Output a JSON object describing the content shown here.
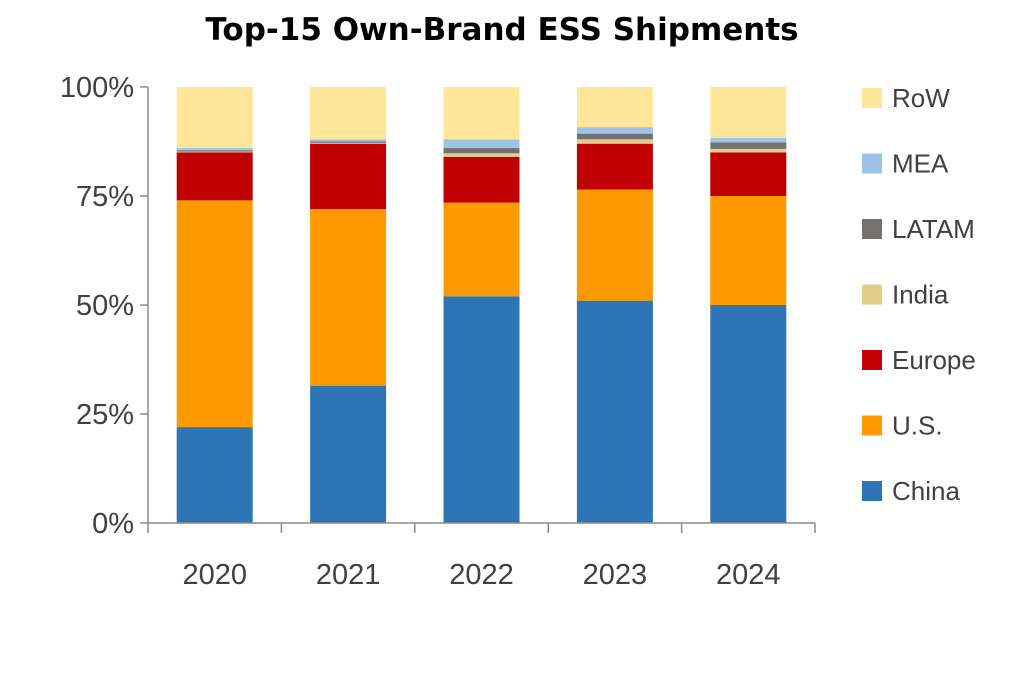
{
  "chart_data": {
    "type": "bar",
    "stacked": true,
    "percent": true,
    "title": "Top-15 Own-Brand ESS Shipments",
    "xlabel": "",
    "ylabel": "",
    "ylim": [
      0,
      100
    ],
    "yticks": [
      "0%",
      "25%",
      "50%",
      "75%",
      "100%"
    ],
    "grid": false,
    "legend": "right",
    "categories": [
      "2020",
      "2021",
      "2022",
      "2023",
      "2024"
    ],
    "series": [
      {
        "name": "China",
        "color": "#2E75B6",
        "values": [
          22,
          31.5,
          52,
          51,
          50
        ]
      },
      {
        "name": "U.S.",
        "color": "#FF9900",
        "values": [
          52,
          40.5,
          21.5,
          25.5,
          25
        ]
      },
      {
        "name": "Europe",
        "color": "#C00000",
        "values": [
          11,
          15,
          10.5,
          10.5,
          10
        ]
      },
      {
        "name": "India",
        "color": "#E0CD8A",
        "values": [
          0.2,
          0.2,
          0.8,
          1,
          0.8
        ]
      },
      {
        "name": "LATAM",
        "color": "#767171",
        "values": [
          0.3,
          0.3,
          1.2,
          1.3,
          1.5
        ]
      },
      {
        "name": "MEA",
        "color": "#9DC3E6",
        "values": [
          0.5,
          0.5,
          2,
          1.5,
          1
        ]
      },
      {
        "name": "RoW",
        "color": "#FFE699",
        "values": [
          14,
          12,
          12,
          9.2,
          11.7
        ]
      }
    ]
  }
}
